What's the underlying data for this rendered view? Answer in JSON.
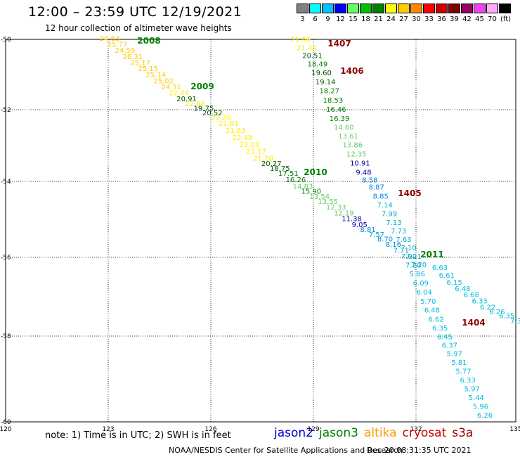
{
  "header": {
    "title": "12:00 – 23:59 UTC 12/19/2021",
    "subtitle": "12 hour collection of altimeter wave heights"
  },
  "legend": {
    "unit": "(ft)",
    "bins": [
      {
        "label": "3",
        "color": "#808080"
      },
      {
        "label": "6",
        "color": "#00ffff"
      },
      {
        "label": "9",
        "color": "#00c0ff"
      },
      {
        "label": "12",
        "color": "#0000ff"
      },
      {
        "label": "15",
        "color": "#66ff66"
      },
      {
        "label": "18",
        "color": "#00c000"
      },
      {
        "label": "21",
        "color": "#008000"
      },
      {
        "label": "24",
        "color": "#ffff00"
      },
      {
        "label": "27",
        "color": "#ffcc00"
      },
      {
        "label": "30",
        "color": "#ff8800"
      },
      {
        "label": "33",
        "color": "#ff0000"
      },
      {
        "label": "36",
        "color": "#cc0000"
      },
      {
        "label": "39",
        "color": "#800000"
      },
      {
        "label": "42",
        "color": "#990066"
      },
      {
        "label": "45",
        "color": "#ee44ee"
      },
      {
        "label": "70",
        "color": "#ffaaff"
      },
      {
        "label": "",
        "color": "#000000"
      }
    ]
  },
  "map": {
    "lon_ticks": [
      "120",
      "123",
      "126",
      "129",
      "132",
      "135"
    ],
    "lat_ticks": [
      "-50",
      "-52",
      "-54",
      "-56",
      "-58",
      "-60"
    ],
    "pass_labels": [
      {
        "text": "2008",
        "color": "#008000"
      },
      {
        "text": "2009",
        "color": "#008000"
      },
      {
        "text": "2010",
        "color": "#008000"
      },
      {
        "text": "2011",
        "color": "#008000"
      },
      {
        "text": "1407",
        "color": "#8b0000"
      },
      {
        "text": "1406",
        "color": "#8b0000"
      },
      {
        "text": "1405",
        "color": "#8b0000"
      },
      {
        "text": "1404",
        "color": "#8b0000"
      }
    ],
    "tracks": [
      {
        "name": "jason3",
        "points": [
          {
            "t": "24.63",
            "c": "#ffcc00"
          },
          {
            "t": "25.77",
            "c": "#ffcc00"
          },
          {
            "t": "24.59",
            "c": "#ffcc00"
          },
          {
            "t": "26.31",
            "c": "#ffcc00"
          },
          {
            "t": "25.17",
            "c": "#ffcc00"
          },
          {
            "t": "25.15",
            "c": "#ffcc00"
          },
          {
            "t": "25.14",
            "c": "#ffcc00"
          },
          {
            "t": "25.02",
            "c": "#ffcc00"
          },
          {
            "t": "24.31",
            "c": "#ffcc00"
          },
          {
            "t": "22.44",
            "c": "#ffee00"
          },
          {
            "t": "20.91",
            "c": "#005000"
          },
          {
            "t": "22.08",
            "c": "#ffee00"
          },
          {
            "t": "19.75",
            "c": "#005000"
          },
          {
            "t": "20.52",
            "c": "#005000"
          },
          {
            "t": "22.36",
            "c": "#ffee00"
          },
          {
            "t": "21.81",
            "c": "#ffee00"
          },
          {
            "t": "21.83",
            "c": "#ffee00"
          },
          {
            "t": "22.49",
            "c": "#ffee00"
          },
          {
            "t": "23.03",
            "c": "#ffee00"
          },
          {
            "t": "21.17",
            "c": "#ffee00"
          },
          {
            "t": "21.20",
            "c": "#ffee00"
          },
          {
            "t": "20.27",
            "c": "#005000"
          },
          {
            "t": "18.75",
            "c": "#005000"
          },
          {
            "t": "17.51",
            "c": "#008000"
          },
          {
            "t": "16.26",
            "c": "#008000"
          },
          {
            "t": "14.83",
            "c": "#66cc66"
          },
          {
            "t": "15.90",
            "c": "#008000"
          },
          {
            "t": "13.54",
            "c": "#66cc66"
          },
          {
            "t": "13.55",
            "c": "#66cc66"
          },
          {
            "t": "12.33",
            "c": "#66cc66"
          },
          {
            "t": "12.19",
            "c": "#66cc66"
          },
          {
            "t": "11.38",
            "c": "#0000aa"
          },
          {
            "t": "9.05",
            "c": "#0000aa"
          },
          {
            "t": "8.81",
            "c": "#0088dd"
          },
          {
            "t": "7.57",
            "c": "#00aacc"
          },
          {
            "t": "8.70",
            "c": "#0088dd"
          },
          {
            "t": "8.16",
            "c": "#0088dd"
          },
          {
            "t": "7.71",
            "c": "#00aacc"
          },
          {
            "t": "7.90",
            "c": "#00aacc"
          },
          {
            "t": "7.20",
            "c": "#00aacc"
          },
          {
            "t": "5.86",
            "c": "#00bbdd"
          },
          {
            "t": "6.09",
            "c": "#00bbdd"
          },
          {
            "t": "6.04",
            "c": "#00bbdd"
          },
          {
            "t": "5.70",
            "c": "#00bbdd"
          },
          {
            "t": "6.48",
            "c": "#00bbdd"
          },
          {
            "t": "6.62",
            "c": "#00bbdd"
          },
          {
            "t": "6.35",
            "c": "#00bbdd"
          },
          {
            "t": "6.45",
            "c": "#00bbdd"
          },
          {
            "t": "6.37",
            "c": "#00bbdd"
          },
          {
            "t": "5.97",
            "c": "#00bbdd"
          },
          {
            "t": "5.81",
            "c": "#00bbdd"
          },
          {
            "t": "5.77",
            "c": "#00bbdd"
          },
          {
            "t": "6.33",
            "c": "#00bbdd"
          },
          {
            "t": "5.97",
            "c": "#00bbdd"
          },
          {
            "t": "5.44",
            "c": "#00bbdd"
          },
          {
            "t": "5.96",
            "c": "#00bbdd"
          },
          {
            "t": "6.26",
            "c": "#00bbdd"
          }
        ]
      },
      {
        "name": "cryosat",
        "points": [
          {
            "t": "21.96",
            "c": "#ffee00"
          },
          {
            "t": "21.44",
            "c": "#ffee00"
          },
          {
            "t": "20.51",
            "c": "#005000"
          },
          {
            "t": "18.49",
            "c": "#008000"
          },
          {
            "t": "19.60",
            "c": "#005000"
          },
          {
            "t": "19.14",
            "c": "#005000"
          },
          {
            "t": "18.27",
            "c": "#008000"
          },
          {
            "t": "18.53",
            "c": "#008000"
          },
          {
            "t": "16.46",
            "c": "#008000"
          },
          {
            "t": "16.39",
            "c": "#008000"
          },
          {
            "t": "14.60",
            "c": "#66cc66"
          },
          {
            "t": "13.61",
            "c": "#66cc66"
          },
          {
            "t": "13.86",
            "c": "#66cc66"
          },
          {
            "t": "12.35",
            "c": "#66cc66"
          },
          {
            "t": "10.91",
            "c": "#0000aa"
          },
          {
            "t": "9.48",
            "c": "#0000aa"
          },
          {
            "t": "8.58",
            "c": "#0088dd"
          },
          {
            "t": "8.87",
            "c": "#0088dd"
          },
          {
            "t": "8.85",
            "c": "#0088dd"
          },
          {
            "t": "7.14",
            "c": "#00aacc"
          },
          {
            "t": "7.99",
            "c": "#00aacc"
          },
          {
            "t": "7.13",
            "c": "#00aacc"
          },
          {
            "t": "7.73",
            "c": "#00aacc"
          },
          {
            "t": "7.63",
            "c": "#00aacc"
          },
          {
            "t": "7.10",
            "c": "#00aacc"
          },
          {
            "t": "7.21",
            "c": "#00aacc"
          },
          {
            "t": "7.20",
            "c": "#00aacc"
          }
        ]
      },
      {
        "name": "jason3-2011",
        "points": [
          {
            "t": "6.63",
            "c": "#00bbdd"
          },
          {
            "t": "6.61",
            "c": "#00bbdd"
          },
          {
            "t": "6.15",
            "c": "#00bbdd"
          },
          {
            "t": "6.48",
            "c": "#00bbdd"
          },
          {
            "t": "6.68",
            "c": "#00bbdd"
          },
          {
            "t": "6.33",
            "c": "#00bbdd"
          },
          {
            "t": "6.22",
            "c": "#00bbdd"
          },
          {
            "t": "6.26",
            "c": "#00bbdd"
          },
          {
            "t": "6.35",
            "c": "#00bbdd"
          },
          {
            "t": "7.3",
            "c": "#00aacc"
          }
        ]
      }
    ]
  },
  "footer": {
    "note": "note: 1) Time is in UTC; 2) SWH is in feet",
    "satellites": [
      {
        "name": "jason2",
        "color": "#0000cc"
      },
      {
        "name": "jason3",
        "color": "#008000"
      },
      {
        "name": "altika",
        "color": "#ff9900"
      },
      {
        "name": "cryosat",
        "color": "#cc0000"
      },
      {
        "name": "s3a",
        "color": "#990000"
      }
    ],
    "credit": "NOAA/NESDIS Center for Satellite Applications and Research",
    "timestamp": "Dec 20 08:31:35 UTC 2021"
  }
}
